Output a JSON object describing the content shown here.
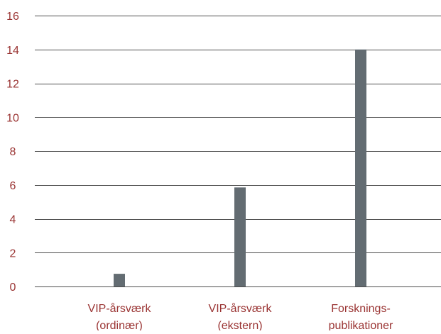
{
  "chart_data": {
    "type": "bar",
    "categories": [
      [
        "VIP-årsværk",
        "(ordinær)"
      ],
      [
        "VIP-årsværk",
        "(ekstern)"
      ],
      [
        "Forsknings-",
        "publikationer"
      ]
    ],
    "values": [
      0.75,
      5.85,
      14.0
    ],
    "ylim": [
      0,
      16
    ],
    "yticks": [
      0,
      2,
      4,
      6,
      8,
      10,
      12,
      14,
      16
    ],
    "grid": true,
    "legend": "none",
    "title": "",
    "xlabel": "",
    "ylabel": ""
  },
  "colors": {
    "bar": "#636c72",
    "gridline": "#4d4d4d",
    "tick_label": "#9a3433",
    "category_label": "#9a3433",
    "background": "#ffffff"
  }
}
